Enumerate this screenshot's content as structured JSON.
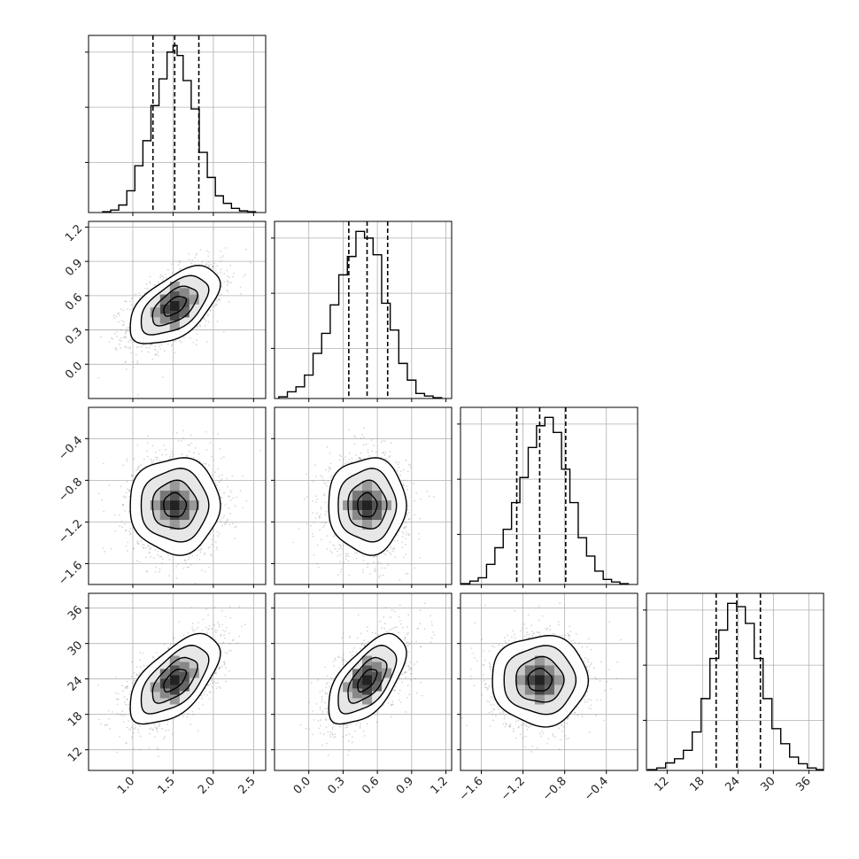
{
  "chart_data": {
    "type": "corner",
    "title": "",
    "parameter_labels": [
      "",
      "",
      "",
      ""
    ],
    "parameters": [
      {
        "index": 0,
        "range": [
          0.45,
          2.65
        ],
        "ticks": [
          1.0,
          1.5,
          2.0,
          2.5
        ],
        "tick_labels": [
          "1.0",
          "1.5",
          "2.0",
          "2.5"
        ],
        "quantiles": {
          "q16": 1.25,
          "q50": 1.52,
          "q84": 1.82
        }
      },
      {
        "index": 1,
        "range": [
          -0.3,
          1.25
        ],
        "ticks": [
          0.0,
          0.3,
          0.6,
          0.9,
          1.2
        ],
        "tick_labels": [
          "0.0",
          "0.3",
          "0.6",
          "0.9",
          "1.2"
        ],
        "quantiles": {
          "q16": 0.35,
          "q50": 0.51,
          "q84": 0.69
        }
      },
      {
        "index": 2,
        "range": [
          -1.8,
          -0.1
        ],
        "ticks": [
          -1.6,
          -1.2,
          -0.8,
          -0.4
        ],
        "tick_labels": [
          "−1.6",
          "−1.2",
          "−0.8",
          "−0.4"
        ],
        "quantiles": {
          "q16": -1.26,
          "q50": -1.04,
          "q84": -0.79
        }
      },
      {
        "index": 3,
        "range": [
          8.5,
          38.5
        ],
        "ticks": [
          12,
          18,
          24,
          30,
          36
        ],
        "tick_labels": [
          "12",
          "18",
          "24",
          "30",
          "36"
        ],
        "quantiles": {
          "q16": 20.3,
          "q50": 23.8,
          "q84": 27.8
        }
      }
    ],
    "histograms": [
      {
        "param": 0,
        "bin_centers": [
          0.675,
          0.775,
          0.875,
          0.975,
          1.075,
          1.175,
          1.275,
          1.375,
          1.475,
          1.525,
          1.575,
          1.675,
          1.775,
          1.875,
          1.975,
          2.075,
          2.175,
          2.275,
          2.375,
          2.475
        ],
        "counts": [
          0.5,
          1.5,
          4.5,
          13,
          28,
          43,
          64,
          80,
          96,
          100,
          94,
          79,
          62,
          36,
          21,
          10,
          5.5,
          2.5,
          1,
          0.5
        ]
      },
      {
        "param": 1,
        "bin_centers": [
          -0.225,
          -0.15,
          -0.075,
          0.0,
          0.075,
          0.15,
          0.225,
          0.3,
          0.375,
          0.45,
          0.525,
          0.6,
          0.675,
          0.75,
          0.825,
          0.9,
          0.975,
          1.05,
          1.125
        ],
        "counts": [
          1,
          4,
          7,
          14,
          27,
          39,
          56,
          74,
          85,
          100,
          96,
          86,
          57,
          41,
          21,
          11,
          3,
          1.5,
          0.5
        ]
      },
      {
        "param": 2,
        "bin_centers": [
          -1.75,
          -1.67,
          -1.59,
          -1.51,
          -1.43,
          -1.35,
          -1.27,
          -1.19,
          -1.11,
          -1.03,
          -0.95,
          -0.87,
          -0.79,
          -0.71,
          -0.63,
          -0.55,
          -0.47,
          -0.39,
          -0.31,
          -0.23
        ],
        "counts": [
          0.5,
          2,
          4,
          12,
          22,
          33,
          49,
          64,
          82,
          95,
          100,
          91,
          69,
          49,
          28,
          17,
          8,
          3,
          1.5,
          0.5
        ]
      },
      {
        "param": 3,
        "bin_centers": [
          9.5,
          11.0,
          12.5,
          14.0,
          15.5,
          17.0,
          18.5,
          20.0,
          21.5,
          23.0,
          24.5,
          26.0,
          27.5,
          29.0,
          30.5,
          32.0,
          33.5,
          35.0,
          36.5,
          38.0
        ],
        "counts": [
          0.5,
          1.5,
          4.5,
          7,
          12,
          23,
          43,
          67,
          84,
          100,
          98,
          88,
          67,
          43,
          25,
          16,
          8,
          4,
          1.5,
          0.5
        ]
      }
    ],
    "joint_panels": [
      {
        "x_param": 0,
        "y_param": 1,
        "x_mean": 1.52,
        "y_mean": 0.51,
        "x_sd": 0.28,
        "y_sd": 0.17,
        "corr": 0.55
      },
      {
        "x_param": 0,
        "y_param": 2,
        "x_mean": 1.52,
        "y_mean": -1.04,
        "x_sd": 0.28,
        "y_sd": 0.23,
        "corr": 0.0
      },
      {
        "x_param": 1,
        "y_param": 2,
        "x_mean": 0.51,
        "y_mean": -1.04,
        "x_sd": 0.17,
        "y_sd": 0.23,
        "corr": 0.0
      },
      {
        "x_param": 0,
        "y_param": 3,
        "x_mean": 1.52,
        "y_mean": 23.8,
        "x_sd": 0.28,
        "y_sd": 3.8,
        "corr": 0.6
      },
      {
        "x_param": 1,
        "y_param": 3,
        "x_mean": 0.51,
        "y_mean": 23.8,
        "x_sd": 0.17,
        "y_sd": 3.8,
        "corr": 0.6
      },
      {
        "x_param": 2,
        "y_param": 3,
        "x_mean": -1.04,
        "y_mean": 23.8,
        "x_sd": 0.23,
        "y_sd": 3.8,
        "corr": 0.0
      }
    ],
    "contour_levels_sigma": [
      0.5,
      1.0,
      1.5,
      2.0
    ],
    "grid": true,
    "colors": {
      "line": "#000000",
      "grid": "#b0b0b0",
      "points": "#8c8c8c",
      "axes": "#000000"
    }
  }
}
